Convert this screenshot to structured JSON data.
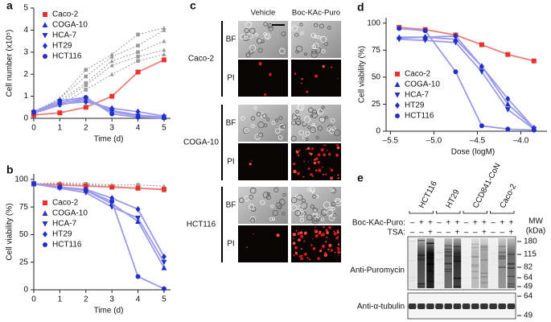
{
  "chart_data": [
    {
      "type": "line",
      "label": "a",
      "ylabel": "Cell number (x10⁵)",
      "xlabel": "Time (d)",
      "x": [
        0,
        1,
        2,
        3,
        4,
        5
      ],
      "xlim": [
        0,
        5.25
      ],
      "xticks": [
        0,
        1,
        2,
        3,
        4,
        5
      ],
      "ylim": [
        0,
        5
      ],
      "yticks": [
        0,
        1,
        2,
        3,
        4,
        5
      ],
      "legend": "upper-left",
      "series": [
        {
          "name": "Caco-2",
          "color": "#e8322b",
          "line_color": "#f07c78",
          "marker": "square",
          "values": [
            0.15,
            0.25,
            0.5,
            1.0,
            2.1,
            2.65
          ]
        },
        {
          "name": "COGA-10",
          "color": "#2130c9",
          "line_color": "#9a9af0",
          "marker": "triangle-up",
          "values": [
            0.3,
            0.7,
            0.9,
            0.35,
            0.15,
            0.05
          ]
        },
        {
          "name": "HCA-7",
          "color": "#2130c9",
          "line_color": "#9a9af0",
          "marker": "triangle-down",
          "values": [
            0.25,
            0.6,
            0.85,
            0.3,
            0.1,
            0.05
          ]
        },
        {
          "name": "HT29",
          "color": "#2130c9",
          "line_color": "#9a9af0",
          "marker": "diamond",
          "values": [
            0.3,
            0.65,
            0.75,
            0.45,
            0.3,
            0.1
          ]
        },
        {
          "name": "HCT116",
          "color": "#2130c9",
          "line_color": "#9a9af0",
          "marker": "circle",
          "values": [
            0.3,
            0.8,
            0.95,
            0.2,
            0.05,
            0.02
          ]
        }
      ],
      "control_series": [
        {
          "color": "#9a9a9a",
          "values": [
            0.25,
            0.9,
            1.9,
            2.8,
            3.3,
            4.0
          ]
        },
        {
          "color": "#9a9a9a",
          "values": [
            0.25,
            0.8,
            1.6,
            2.6,
            3.0,
            3.5
          ]
        },
        {
          "color": "#9a9a9a",
          "values": [
            0.2,
            0.7,
            1.5,
            2.4,
            2.8,
            3.1
          ]
        },
        {
          "color": "#9a9a9a",
          "values": [
            0.3,
            0.9,
            2.2,
            2.9,
            3.8,
            4.1
          ]
        },
        {
          "color": "#9a9a9a",
          "values": [
            0.2,
            0.6,
            1.3,
            2.0,
            2.6,
            2.9
          ]
        }
      ]
    },
    {
      "type": "line",
      "label": "b",
      "ylabel": "Cell viability (%)",
      "xlabel": "Time (d)",
      "x": [
        0,
        1,
        2,
        3,
        4,
        5
      ],
      "xlim": [
        0,
        5.25
      ],
      "xticks": [
        0,
        1,
        2,
        3,
        4,
        5
      ],
      "ylim": [
        0,
        105
      ],
      "yticks": [
        0,
        25,
        50,
        75,
        100
      ],
      "legend": "lower-left",
      "series": [
        {
          "name": "Caco-2",
          "color": "#e8322b",
          "line_color": "#f07c78",
          "marker": "square",
          "values": [
            96,
            95,
            94,
            93,
            92,
            91
          ]
        },
        {
          "name": "COGA-10",
          "color": "#2130c9",
          "line_color": "#9a9af0",
          "marker": "triangle-up",
          "values": [
            96,
            93,
            90,
            78,
            62,
            20
          ]
        },
        {
          "name": "HCA-7",
          "color": "#2130c9",
          "line_color": "#9a9af0",
          "marker": "triangle-down",
          "values": [
            96,
            92,
            88,
            75,
            65,
            25
          ]
        },
        {
          "name": "HT29",
          "color": "#2130c9",
          "line_color": "#9a9af0",
          "marker": "diamond",
          "values": [
            96,
            93,
            91,
            83,
            73,
            30
          ]
        },
        {
          "name": "HCT116",
          "color": "#2130c9",
          "line_color": "#9a9af0",
          "marker": "circle",
          "values": [
            96,
            93,
            90,
            80,
            12,
            1
          ]
        }
      ],
      "control_series": [
        {
          "color": "#9a9a9a",
          "values": [
            96,
            97,
            96,
            95,
            95,
            94
          ]
        },
        {
          "color": "#9a9a9a",
          "values": [
            96,
            96,
            95,
            94,
            92,
            90
          ]
        }
      ]
    },
    {
      "type": "line",
      "label": "d",
      "ylabel": "Cell viability (%)",
      "xlabel": "Dose (logM)",
      "x": [
        -5.4,
        -5.1,
        -4.75,
        -4.45,
        -4.15,
        -3.85
      ],
      "xlim": [
        -5.55,
        -3.7
      ],
      "xticks": [
        {
          "value": -5.5,
          "label": "–5.5"
        },
        {
          "value": -5.0,
          "label": "–5.0"
        },
        {
          "value": -4.5,
          "label": "–4.5"
        },
        {
          "value": -4.0,
          "label": "–4.0"
        }
      ],
      "ylim": [
        0,
        105
      ],
      "yticks": [
        0,
        25,
        50,
        75,
        100
      ],
      "legend": "lower-left",
      "series": [
        {
          "name": "Caco-2",
          "color": "#e8322b",
          "line_color": "#f07c78",
          "marker": "square",
          "values": [
            96,
            94,
            89,
            80,
            71,
            65
          ]
        },
        {
          "name": "COGA-10",
          "color": "#2130c9",
          "line_color": "#9a9af0",
          "marker": "triangle-up",
          "values": [
            87,
            87,
            85,
            60,
            25,
            3
          ]
        },
        {
          "name": "HCA-7",
          "color": "#2130c9",
          "line_color": "#9a9af0",
          "marker": "triangle-down",
          "values": [
            85,
            84,
            82,
            55,
            20,
            2
          ]
        },
        {
          "name": "HT29",
          "color": "#2130c9",
          "line_color": "#9a9af0",
          "marker": "diamond",
          "values": [
            86,
            87,
            88,
            60,
            30,
            3
          ]
        },
        {
          "name": "HCT116",
          "color": "#2130c9",
          "line_color": "#9a9af0",
          "marker": "circle",
          "values": [
            95,
            93,
            55,
            5,
            2,
            1
          ]
        }
      ]
    }
  ],
  "micrographs": {
    "label": "c",
    "columns": [
      "Vehicle",
      "Boc-KAc-Puro"
    ],
    "groups": [
      {
        "name": "Caco-2",
        "rows": [
          "BF",
          "PI"
        ]
      },
      {
        "name": "COGA-10",
        "rows": [
          "BF",
          "PI"
        ]
      },
      {
        "name": "HCT116",
        "rows": [
          "BF",
          "PI"
        ]
      }
    ]
  },
  "blot": {
    "label": "e",
    "lanes": [
      "HCT116",
      "HT29",
      "CCD841-CoN",
      "Caco-2"
    ],
    "treatments": [
      {
        "name": "Boc-KAc-Puro:",
        "signs": [
          "–",
          "+",
          "+",
          "–",
          "+",
          "+",
          "–",
          "+",
          "+",
          "–",
          "+",
          "+"
        ]
      },
      {
        "name": "TSA:",
        "signs": [
          "–",
          "–",
          "+",
          "–",
          "–",
          "+",
          "–",
          "–",
          "+",
          "–",
          "–",
          "+"
        ]
      }
    ],
    "mw_title": [
      "MW",
      "(kDa)"
    ],
    "antibodies": [
      "Anti-Puromycin",
      "Anti-α-tubulin"
    ],
    "mw_markers": [
      [
        180,
        115,
        82,
        64,
        49
      ],
      [
        64,
        49
      ]
    ]
  }
}
